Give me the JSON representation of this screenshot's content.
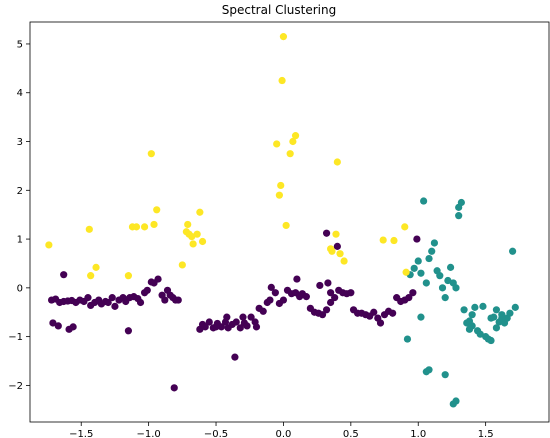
{
  "chart_data": {
    "type": "scatter",
    "title": "Spectral Clustering",
    "xlabel": "",
    "ylabel": "",
    "xlim": [
      -1.88,
      1.97
    ],
    "ylim": [
      -2.75,
      5.45
    ],
    "xticks": [
      -1.5,
      -1.0,
      -0.5,
      0.0,
      0.5,
      1.0,
      1.5
    ],
    "xtick_labels": [
      "−1.5",
      "−1.0",
      "−0.5",
      "0.0",
      "0.5",
      "1.0",
      "1.5"
    ],
    "yticks": [
      -2,
      -1,
      0,
      1,
      2,
      3,
      4,
      5
    ],
    "ytick_labels": [
      "−2",
      "−1",
      "0",
      "1",
      "2",
      "3",
      "4",
      "5"
    ],
    "grid": false,
    "legend": "none",
    "series": [
      {
        "color": "#440154",
        "points": [
          [
            -1.72,
            -0.25
          ],
          [
            -1.69,
            -0.23
          ],
          [
            -1.66,
            -0.3
          ],
          [
            -1.63,
            -0.28
          ],
          [
            -1.6,
            -0.27
          ],
          [
            -1.57,
            -0.26
          ],
          [
            -1.54,
            -0.3
          ],
          [
            -1.51,
            -0.25
          ],
          [
            -1.48,
            -0.28
          ],
          [
            -1.45,
            -0.2
          ],
          [
            -1.43,
            -0.36
          ],
          [
            -1.4,
            -0.3
          ],
          [
            -1.37,
            -0.25
          ],
          [
            -1.35,
            -0.33
          ],
          [
            -1.32,
            -0.28
          ],
          [
            -1.3,
            -0.3
          ],
          [
            -1.27,
            -0.2
          ],
          [
            -1.25,
            -0.38
          ],
          [
            -1.22,
            -0.25
          ],
          [
            -1.19,
            -0.2
          ],
          [
            -1.17,
            -0.28
          ],
          [
            -1.14,
            -0.2
          ],
          [
            -1.11,
            -0.18
          ],
          [
            -1.08,
            -0.22
          ],
          [
            -1.06,
            -0.3
          ],
          [
            -1.03,
            -0.1
          ],
          [
            -1.01,
            -0.05
          ],
          [
            -0.98,
            0.12
          ],
          [
            -0.96,
            0.1
          ],
          [
            -0.93,
            0.18
          ],
          [
            -0.9,
            -0.15
          ],
          [
            -0.88,
            -0.25
          ],
          [
            -0.86,
            -0.05
          ],
          [
            -0.84,
            -0.15
          ],
          [
            -0.82,
            -0.2
          ],
          [
            -0.8,
            -0.25
          ],
          [
            -0.78,
            -0.25
          ],
          [
            -1.63,
            0.27
          ],
          [
            -1.71,
            -0.72
          ],
          [
            -1.67,
            -0.78
          ],
          [
            -1.59,
            -0.85
          ],
          [
            -1.56,
            -0.8
          ],
          [
            -1.15,
            -0.88
          ],
          [
            -0.81,
            -2.05
          ],
          [
            -0.62,
            -0.85
          ],
          [
            -0.6,
            -0.75
          ],
          [
            -0.58,
            -0.8
          ],
          [
            -0.55,
            -0.7
          ],
          [
            -0.52,
            -0.82
          ],
          [
            -0.49,
            -0.73
          ],
          [
            -0.46,
            -0.8
          ],
          [
            -0.43,
            -0.7
          ],
          [
            -0.41,
            -0.82
          ],
          [
            -0.38,
            -0.75
          ],
          [
            -0.35,
            -0.7
          ],
          [
            -0.32,
            -0.82
          ],
          [
            -0.29,
            -0.72
          ],
          [
            -0.27,
            -0.78
          ],
          [
            -0.24,
            -0.6
          ],
          [
            -0.21,
            -0.7
          ],
          [
            -0.18,
            -0.42
          ],
          [
            -0.15,
            -0.48
          ],
          [
            -0.12,
            -0.3
          ],
          [
            -0.1,
            -0.25
          ],
          [
            -0.09,
            0.01
          ],
          [
            -0.06,
            -0.1
          ],
          [
            -0.03,
            -0.32
          ],
          [
            0.0,
            -0.25
          ],
          [
            0.03,
            -0.05
          ],
          [
            0.06,
            -0.12
          ],
          [
            0.09,
            -0.1
          ],
          [
            0.12,
            -0.18
          ],
          [
            -0.5,
            -0.8
          ],
          [
            -0.36,
            -1.42
          ],
          [
            -0.2,
            -0.8
          ],
          [
            -0.42,
            -0.6
          ],
          [
            -0.3,
            -0.6
          ],
          [
            0.14,
            -0.12
          ],
          [
            0.17,
            -0.18
          ],
          [
            0.2,
            -0.42
          ],
          [
            0.23,
            -0.5
          ],
          [
            0.26,
            -0.52
          ],
          [
            0.29,
            -0.55
          ],
          [
            0.32,
            -0.45
          ],
          [
            0.35,
            -0.3
          ],
          [
            0.38,
            -0.2
          ],
          [
            0.41,
            -0.05
          ],
          [
            0.44,
            -0.1
          ],
          [
            0.47,
            -0.12
          ],
          [
            0.5,
            -0.1
          ],
          [
            0.52,
            -0.45
          ],
          [
            0.55,
            -0.52
          ],
          [
            0.58,
            -0.52
          ],
          [
            0.61,
            -0.55
          ],
          [
            0.64,
            -0.58
          ],
          [
            0.67,
            -0.5
          ],
          [
            0.7,
            -0.62
          ],
          [
            0.72,
            -0.72
          ],
          [
            0.75,
            -0.55
          ],
          [
            0.78,
            -0.48
          ],
          [
            0.81,
            -0.52
          ],
          [
            0.84,
            -0.2
          ],
          [
            0.87,
            -0.28
          ],
          [
            0.9,
            -0.25
          ],
          [
            0.93,
            -0.2
          ],
          [
            0.96,
            -0.1
          ],
          [
            0.99,
            1.0
          ],
          [
            0.32,
            1.12
          ],
          [
            0.4,
            0.85
          ],
          [
            0.33,
            0.1
          ],
          [
            0.1,
            0.18
          ],
          [
            0.27,
            0.05
          ],
          [
            0.35,
            -0.1
          ]
        ]
      },
      {
        "color": "#21918c",
        "points": [
          [
            0.94,
            0.27
          ],
          [
            0.97,
            0.4
          ],
          [
            1.0,
            0.55
          ],
          [
            1.02,
            0.3
          ],
          [
            1.04,
            1.78
          ],
          [
            1.06,
            0.1
          ],
          [
            1.08,
            0.6
          ],
          [
            1.1,
            0.75
          ],
          [
            1.12,
            0.92
          ],
          [
            1.14,
            0.35
          ],
          [
            1.16,
            0.25
          ],
          [
            1.18,
            0.0
          ],
          [
            1.2,
            -0.2
          ],
          [
            1.22,
            0.15
          ],
          [
            1.24,
            0.42
          ],
          [
            1.26,
            0.1
          ],
          [
            1.28,
            0.0
          ],
          [
            1.3,
            1.65
          ],
          [
            1.32,
            1.75
          ],
          [
            1.34,
            -0.45
          ],
          [
            1.36,
            -0.72
          ],
          [
            1.38,
            -0.68
          ],
          [
            1.4,
            -0.78
          ],
          [
            1.42,
            -0.4
          ],
          [
            1.44,
            -0.88
          ],
          [
            1.46,
            -0.95
          ],
          [
            1.48,
            -0.38
          ],
          [
            1.5,
            -1.0
          ],
          [
            1.52,
            -1.05
          ],
          [
            1.54,
            -0.62
          ],
          [
            1.56,
            -0.6
          ],
          [
            1.58,
            -0.45
          ],
          [
            1.6,
            -0.7
          ],
          [
            1.62,
            -0.55
          ],
          [
            1.64,
            -0.72
          ],
          [
            1.66,
            -0.62
          ],
          [
            1.68,
            -0.52
          ],
          [
            1.7,
            0.75
          ],
          [
            1.72,
            -0.4
          ],
          [
            1.06,
            -1.72
          ],
          [
            1.08,
            -1.68
          ],
          [
            1.2,
            -1.78
          ],
          [
            1.26,
            -2.38
          ],
          [
            1.28,
            -2.32
          ],
          [
            1.3,
            1.48
          ],
          [
            0.92,
            -1.05
          ],
          [
            1.02,
            -0.6
          ],
          [
            1.38,
            -0.85
          ],
          [
            1.54,
            -1.08
          ],
          [
            1.58,
            -0.82
          ],
          [
            1.4,
            -0.55
          ],
          [
            1.62,
            -0.62
          ]
        ]
      },
      {
        "color": "#fde725",
        "points": [
          [
            -1.74,
            0.88
          ],
          [
            -1.44,
            1.2
          ],
          [
            -1.43,
            0.25
          ],
          [
            -1.39,
            0.42
          ],
          [
            -1.15,
            0.25
          ],
          [
            -1.12,
            1.25
          ],
          [
            -1.09,
            1.25
          ],
          [
            -1.03,
            1.25
          ],
          [
            -0.98,
            2.75
          ],
          [
            -0.96,
            1.3
          ],
          [
            -0.94,
            1.6
          ],
          [
            -0.75,
            0.47
          ],
          [
            -0.72,
            1.15
          ],
          [
            -0.71,
            1.3
          ],
          [
            -0.7,
            1.1
          ],
          [
            -0.68,
            1.05
          ],
          [
            -0.67,
            0.9
          ],
          [
            -0.64,
            1.1
          ],
          [
            -0.62,
            1.55
          ],
          [
            -0.6,
            0.95
          ],
          [
            -0.05,
            2.95
          ],
          [
            -0.03,
            1.9
          ],
          [
            -0.02,
            2.1
          ],
          [
            -0.01,
            4.25
          ],
          [
            0.0,
            5.15
          ],
          [
            0.02,
            1.28
          ],
          [
            0.05,
            2.75
          ],
          [
            0.07,
            3.0
          ],
          [
            0.09,
            3.12
          ],
          [
            0.35,
            0.8
          ],
          [
            0.36,
            0.75
          ],
          [
            0.4,
            2.58
          ],
          [
            0.45,
            0.55
          ],
          [
            0.74,
            0.98
          ],
          [
            0.82,
            0.97
          ],
          [
            0.9,
            1.25
          ],
          [
            0.91,
            0.32
          ],
          [
            0.39,
            1.1
          ],
          [
            0.42,
            0.7
          ]
        ]
      }
    ]
  }
}
